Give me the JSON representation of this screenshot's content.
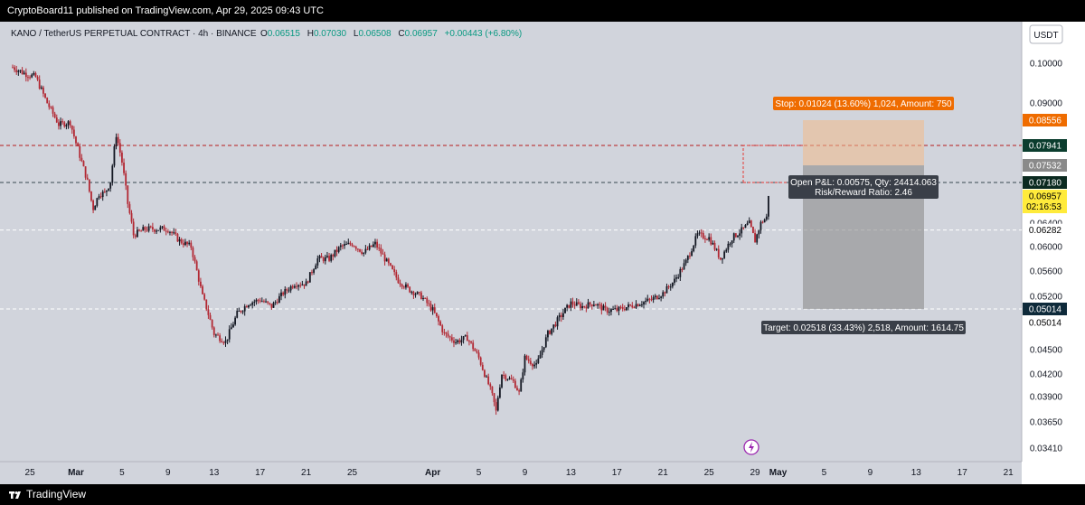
{
  "header": {
    "published": "CryptoBoard11 published on TradingView.com, Apr 29, 2025 09:43 UTC"
  },
  "footer": {
    "brand": "TradingView"
  },
  "chart_data": {
    "type": "candlestick",
    "symbol_line": "KANO / TetherUS PERPETUAL CONTRACT · 4h · BINANCE",
    "ohlc_labels": {
      "o": "O",
      "h": "H",
      "l": "L",
      "c": "C"
    },
    "ohlc": {
      "open": "0.06515",
      "high": "0.07030",
      "low": "0.06508",
      "close": "0.06957",
      "change": "+0.00443 (+6.80%)"
    },
    "currency": "USDT",
    "y_ticks": [
      {
        "label": "0.10000",
        "v": 0.1
      },
      {
        "label": "0.09000",
        "v": 0.09
      },
      {
        "label": "0.06400",
        "v": 0.064
      },
      {
        "label": "0.06000",
        "v": 0.06
      },
      {
        "label": "0.05600",
        "v": 0.056
      },
      {
        "label": "0.05200",
        "v": 0.052
      },
      {
        "label": "0.04500",
        "v": 0.045
      },
      {
        "label": "0.04200",
        "v": 0.042
      },
      {
        "label": "0.03900",
        "v": 0.039
      },
      {
        "label": "0.03650",
        "v": 0.0365
      },
      {
        "label": "0.03410",
        "v": 0.0341
      }
    ],
    "x_ticks": [
      "25",
      "Mar",
      "5",
      "9",
      "13",
      "17",
      "21",
      "25",
      "Apr",
      "5",
      "9",
      "13",
      "17",
      "21",
      "25",
      "29",
      "May",
      "5",
      "9",
      "13",
      "17",
      "21"
    ],
    "x_tick_days": [
      -4,
      0,
      4,
      8,
      12,
      16,
      20,
      24,
      31,
      35,
      39,
      43,
      47,
      51,
      55,
      59,
      61,
      65,
      69,
      73,
      77,
      81
    ],
    "price_tags": [
      {
        "label": "0.08556",
        "v": 0.08556,
        "color": "#ef6c00",
        "text_color": "#ffffff"
      },
      {
        "label": "0.07941",
        "v": 0.07941,
        "color": "#0b3d2e",
        "text_color": "#ffffff"
      },
      {
        "label": "0.07532",
        "v": 0.07532,
        "color": "#8a8a8a",
        "text_color": "#ffffff"
      },
      {
        "label": "0.07180",
        "v": 0.0718,
        "color": "#0b2a20",
        "text_color": "#ffffff"
      },
      {
        "label": "0.06957",
        "v": 0.06957,
        "color": "#ffeb3b",
        "text_color": "#000000",
        "sub": "02:16:53"
      },
      {
        "label": "0.06282",
        "v": 0.06282,
        "color": "#ffffff",
        "text_color": "#000000"
      },
      {
        "label": "0.05014",
        "v": 0.05014,
        "color": "#0e2a3a",
        "text_color": "#ffffff"
      },
      {
        "label": "0.05014",
        "v": 0.05014,
        "color": "#ffffff",
        "text_color": "#000000",
        "offset": 15
      }
    ],
    "horizontal_lines": [
      {
        "v": 0.07941,
        "color": "#b71c1c",
        "style": "dashed"
      },
      {
        "v": 0.0718,
        "color": "#37474f",
        "style": "dashed"
      },
      {
        "v": 0.06282,
        "color": "#ffffff",
        "style": "dashed"
      },
      {
        "v": 0.05014,
        "color": "#ffffff",
        "style": "dashed"
      }
    ],
    "position": {
      "entry": 0.07532,
      "stop": 0.08556,
      "target": 0.05014,
      "stop_label": "Stop: 0.01024 (13.60%) 1,024, Amount: 750",
      "target_label": "Target: 0.02518 (33.43%) 2,518, Amount: 1614.75",
      "pnl_label": "Open P&L: 0.00575, Qty: 24414.063",
      "rr_label": "Risk/Reward Ratio: 2.46"
    },
    "price_series": [
      {
        "d": -5.5,
        "v": 0.099
      },
      {
        "d": -4.5,
        "v": 0.0975
      },
      {
        "d": -3.5,
        "v": 0.0965
      },
      {
        "d": -2.5,
        "v": 0.09
      },
      {
        "d": -1.5,
        "v": 0.0845
      },
      {
        "d": -0.5,
        "v": 0.085
      },
      {
        "d": 0.0,
        "v": 0.08
      },
      {
        "d": 0.5,
        "v": 0.076
      },
      {
        "d": 1.0,
        "v": 0.072
      },
      {
        "d": 1.5,
        "v": 0.067
      },
      {
        "d": 2.0,
        "v": 0.07
      },
      {
        "d": 2.5,
        "v": 0.07
      },
      {
        "d": 3.0,
        "v": 0.072
      },
      {
        "d": 3.5,
        "v": 0.082
      },
      {
        "d": 4.0,
        "v": 0.076
      },
      {
        "d": 4.5,
        "v": 0.068
      },
      {
        "d": 5.0,
        "v": 0.062
      },
      {
        "d": 6.0,
        "v": 0.063
      },
      {
        "d": 7.0,
        "v": 0.063
      },
      {
        "d": 8.0,
        "v": 0.063
      },
      {
        "d": 9.0,
        "v": 0.061
      },
      {
        "d": 10.0,
        "v": 0.06
      },
      {
        "d": 10.5,
        "v": 0.056
      },
      {
        "d": 11.0,
        "v": 0.052
      },
      {
        "d": 12.0,
        "v": 0.047
      },
      {
        "d": 13.0,
        "v": 0.046
      },
      {
        "d": 14.0,
        "v": 0.0495
      },
      {
        "d": 15.0,
        "v": 0.051
      },
      {
        "d": 16.0,
        "v": 0.0515
      },
      {
        "d": 17.0,
        "v": 0.0505
      },
      {
        "d": 18.0,
        "v": 0.0525
      },
      {
        "d": 19.0,
        "v": 0.054
      },
      {
        "d": 20.0,
        "v": 0.054
      },
      {
        "d": 21.0,
        "v": 0.058
      },
      {
        "d": 22.0,
        "v": 0.058
      },
      {
        "d": 23.0,
        "v": 0.06
      },
      {
        "d": 24.0,
        "v": 0.0605
      },
      {
        "d": 25.0,
        "v": 0.059
      },
      {
        "d": 26.0,
        "v": 0.0605
      },
      {
        "d": 27.0,
        "v": 0.0575
      },
      {
        "d": 28.0,
        "v": 0.0545
      },
      {
        "d": 29.0,
        "v": 0.053
      },
      {
        "d": 30.0,
        "v": 0.052
      },
      {
        "d": 31.0,
        "v": 0.05
      },
      {
        "d": 32.0,
        "v": 0.047
      },
      {
        "d": 33.0,
        "v": 0.046
      },
      {
        "d": 34.0,
        "v": 0.0465
      },
      {
        "d": 35.0,
        "v": 0.044
      },
      {
        "d": 36.0,
        "v": 0.04
      },
      {
        "d": 36.5,
        "v": 0.0375
      },
      {
        "d": 37.0,
        "v": 0.042
      },
      {
        "d": 38.0,
        "v": 0.041
      },
      {
        "d": 38.5,
        "v": 0.0395
      },
      {
        "d": 39.0,
        "v": 0.044
      },
      {
        "d": 40.0,
        "v": 0.043
      },
      {
        "d": 41.0,
        "v": 0.047
      },
      {
        "d": 42.0,
        "v": 0.049
      },
      {
        "d": 43.0,
        "v": 0.051
      },
      {
        "d": 44.0,
        "v": 0.0505
      },
      {
        "d": 45.0,
        "v": 0.051
      },
      {
        "d": 46.0,
        "v": 0.05
      },
      {
        "d": 47.0,
        "v": 0.05
      },
      {
        "d": 48.0,
        "v": 0.0505
      },
      {
        "d": 49.0,
        "v": 0.051
      },
      {
        "d": 50.0,
        "v": 0.0515
      },
      {
        "d": 51.0,
        "v": 0.0525
      },
      {
        "d": 52.0,
        "v": 0.0545
      },
      {
        "d": 53.0,
        "v": 0.0575
      },
      {
        "d": 54.0,
        "v": 0.062
      },
      {
        "d": 55.0,
        "v": 0.0615
      },
      {
        "d": 56.0,
        "v": 0.058
      },
      {
        "d": 57.0,
        "v": 0.0615
      },
      {
        "d": 58.0,
        "v": 0.063
      },
      {
        "d": 58.5,
        "v": 0.064
      },
      {
        "d": 59.0,
        "v": 0.061
      },
      {
        "d": 59.5,
        "v": 0.064
      },
      {
        "d": 60.0,
        "v": 0.06515
      },
      {
        "d": 60.3,
        "v": 0.06957
      }
    ]
  }
}
